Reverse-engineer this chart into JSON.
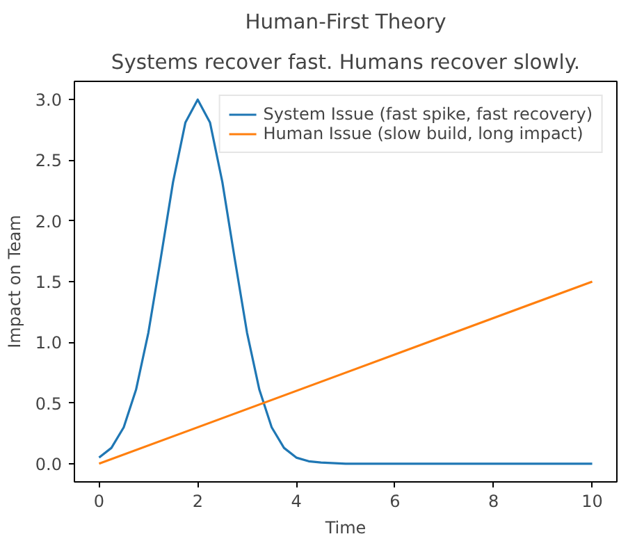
{
  "chart_data": {
    "type": "line",
    "title": "Human-First Theory",
    "subtitle": "Systems recover fast. Humans recover slowly.",
    "xlabel": "Time",
    "ylabel": "Impact on Team",
    "series": [
      {
        "name": "System Issue (fast spike, fast recovery)",
        "color": "#1f77b4",
        "x": [
          0,
          0.25,
          0.5,
          0.75,
          1.0,
          1.25,
          1.5,
          1.75,
          2.0,
          2.25,
          2.5,
          2.75,
          3.0,
          3.25,
          3.5,
          3.75,
          4.0,
          4.25,
          4.5,
          5,
          6,
          7,
          8,
          9,
          10
        ],
        "values": [
          0.05,
          0.13,
          0.3,
          0.61,
          1.08,
          1.69,
          2.32,
          2.81,
          3.0,
          2.81,
          2.32,
          1.69,
          1.08,
          0.61,
          0.3,
          0.13,
          0.05,
          0.02,
          0.01,
          0,
          0,
          0,
          0,
          0,
          0
        ]
      },
      {
        "name": "Human Issue (slow build, long impact)",
        "color": "#ff7f0e",
        "x": [
          0,
          10
        ],
        "values": [
          0,
          1.5
        ]
      }
    ],
    "xlim": [
      -0.5,
      10.5
    ],
    "ylim": [
      -0.15,
      3.15
    ],
    "xticks": [
      0,
      2,
      4,
      6,
      8,
      10
    ],
    "yticks": [
      {
        "value": 0,
        "label": "0.0"
      },
      {
        "value": 0.5,
        "label": "0.5"
      },
      {
        "value": 1,
        "label": "1.0"
      },
      {
        "value": 1.5,
        "label": "1.5"
      },
      {
        "value": 2,
        "label": "2.0"
      },
      {
        "value": 2.5,
        "label": "2.5"
      },
      {
        "value": 3,
        "label": "3.0"
      }
    ],
    "legend": "top right",
    "grid": false
  }
}
